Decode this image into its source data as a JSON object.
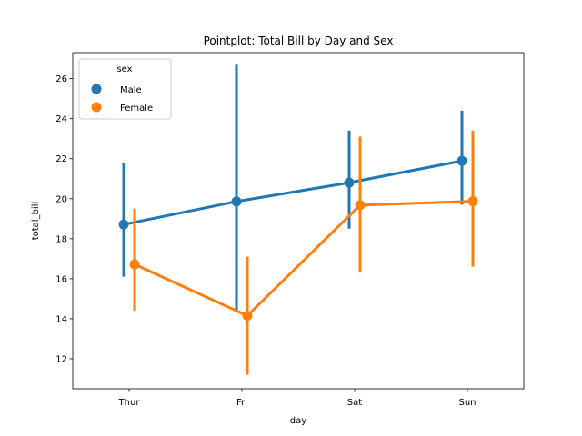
{
  "chart_data": {
    "type": "line",
    "title": "Pointplot: Total Bill by Day and Sex",
    "xlabel": "day",
    "ylabel": "total_bill",
    "categories": [
      "Thur",
      "Fri",
      "Sat",
      "Sun"
    ],
    "ylim": [
      10.5,
      27.3
    ],
    "yticks": [
      12,
      14,
      16,
      18,
      20,
      22,
      24,
      26
    ],
    "grid": false,
    "legend": {
      "title": "sex",
      "position": "top-left"
    },
    "series": [
      {
        "name": "Male",
        "color": "#1f77b4",
        "values": [
          18.71,
          19.86,
          20.8,
          21.89
        ],
        "ci_low": [
          16.1,
          14.4,
          18.5,
          19.7
        ],
        "ci_high": [
          21.8,
          26.7,
          23.4,
          24.4
        ]
      },
      {
        "name": "Female",
        "color": "#ff7f0e",
        "values": [
          16.72,
          14.15,
          19.68,
          19.87
        ],
        "ci_low": [
          14.4,
          11.2,
          16.3,
          16.6
        ],
        "ci_high": [
          19.5,
          17.1,
          23.1,
          23.4
        ]
      }
    ]
  }
}
